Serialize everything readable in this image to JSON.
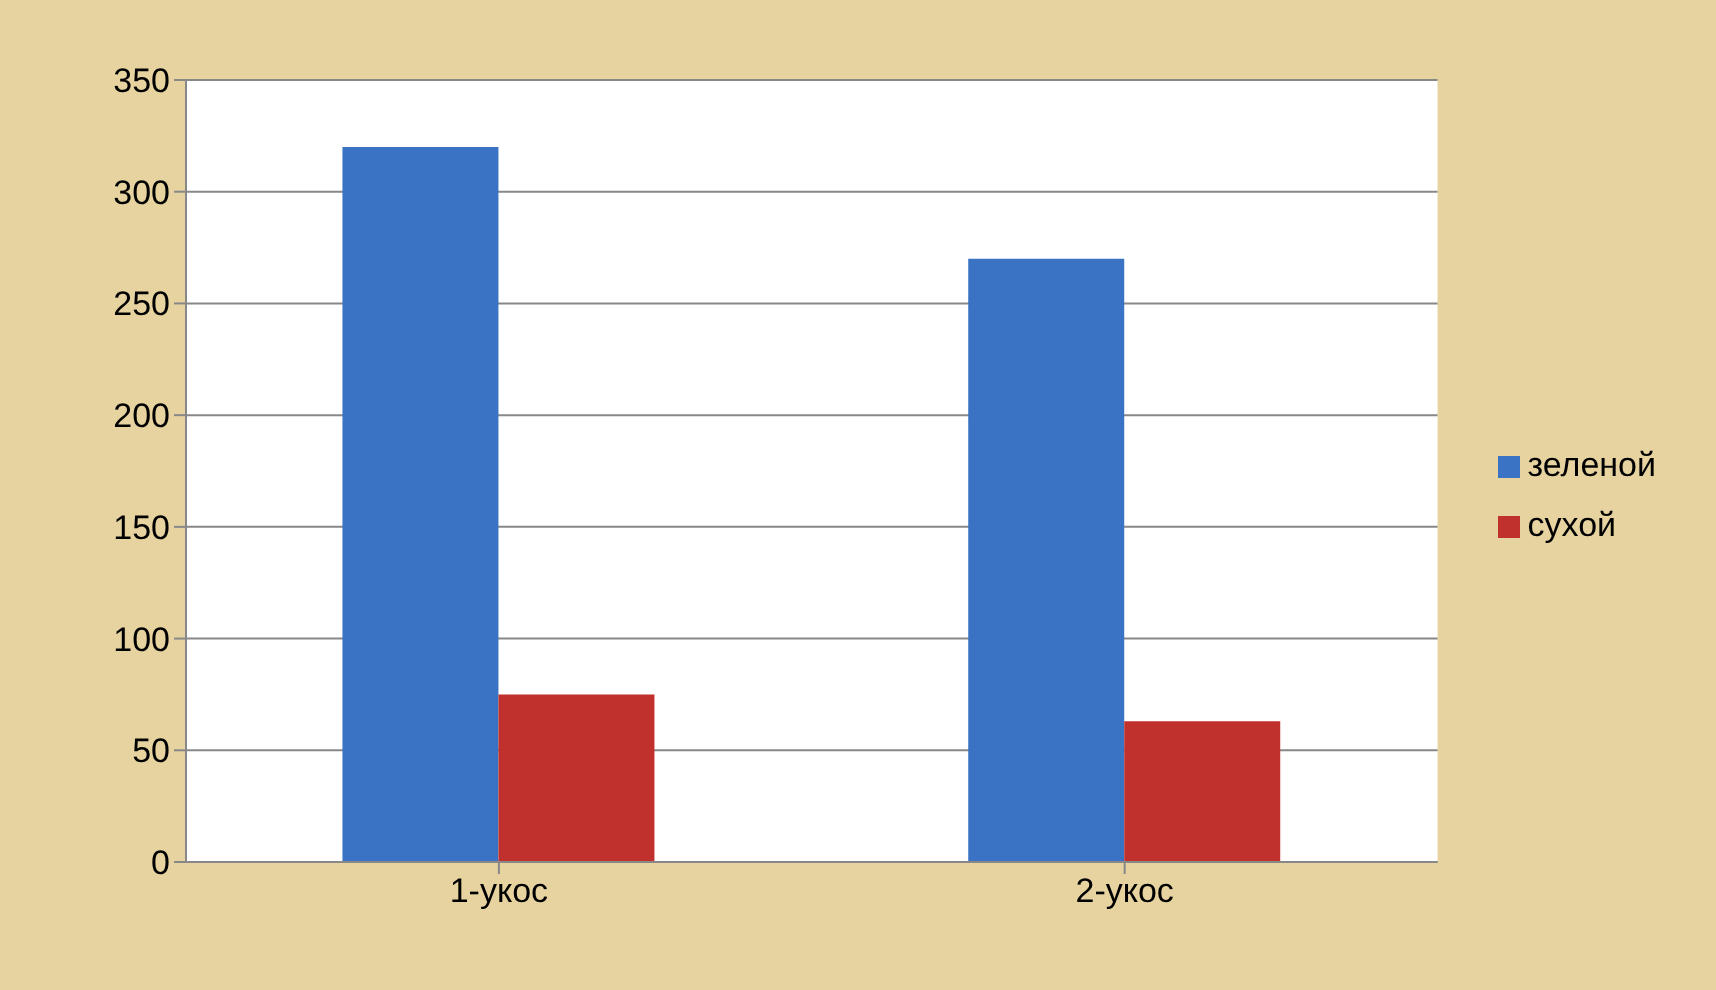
{
  "chart_data": {
    "type": "bar",
    "categories": [
      "1-укос",
      "2-укос"
    ],
    "series": [
      {
        "name": "зеленой",
        "color": "#3a73c4",
        "values": [
          320,
          270
        ]
      },
      {
        "name": "сухой",
        "color": "#c0302c",
        "values": [
          75,
          63
        ]
      }
    ],
    "ylim": [
      0,
      350
    ],
    "yticks": [
      0,
      50,
      100,
      150,
      200,
      250,
      300,
      350
    ],
    "grid": "y",
    "legend": "right"
  }
}
